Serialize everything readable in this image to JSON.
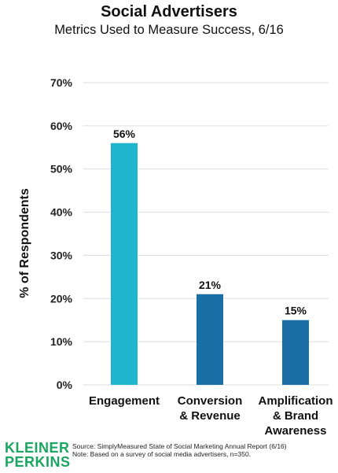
{
  "colors": {
    "bar_engagement": "#1fb5cf",
    "bar_other": "#1a6fa6",
    "grid": "#dddddd",
    "logo": "#1aa660"
  },
  "chart_data": {
    "type": "bar",
    "title": "Social Advertisers",
    "subtitle": "Metrics Used to Measure Success, 6/16",
    "ylabel": "% of Respondents",
    "ylim": [
      0,
      70
    ],
    "yticks": [
      "0%",
      "10%",
      "20%",
      "30%",
      "40%",
      "50%",
      "60%",
      "70%"
    ],
    "categories": [
      [
        "Engagement"
      ],
      [
        "Conversion",
        "& Revenue"
      ],
      [
        "Amplification",
        "& Brand",
        "Awareness"
      ]
    ],
    "values": [
      56,
      21,
      15
    ],
    "data_labels": [
      "56%",
      "21%",
      "15%"
    ],
    "grid": true
  },
  "footer": {
    "logo_line1": "KLEINER",
    "logo_line2": "PERKINS",
    "source": "Source: SimplyMeasured State of Social Marketing Annual Report (6/16)",
    "note": "Note: Based on a survey of social media advertisers, n=350."
  }
}
